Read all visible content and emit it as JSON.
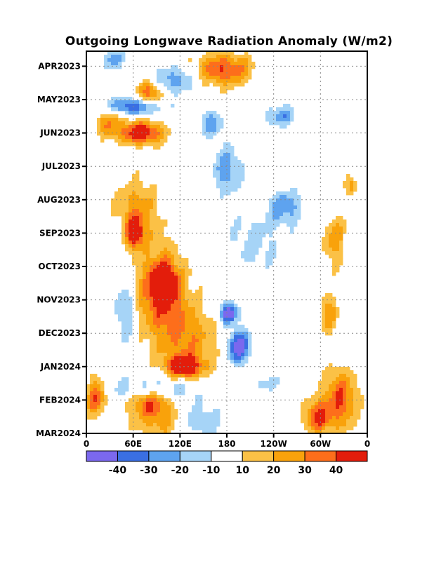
{
  "chart_data": {
    "type": "heatmap",
    "title": "Outgoing Longwave Radiation Anomaly (W/m2)",
    "xlabel": "",
    "ylabel": "",
    "x_ticks": [
      "0",
      "60E",
      "120E",
      "180",
      "120W",
      "60W",
      "0"
    ],
    "x_values": [
      0,
      60,
      120,
      180,
      240,
      300,
      360
    ],
    "xlim": [
      0,
      360
    ],
    "y_ticks": [
      "APR2023",
      "MAY2023",
      "JUN2023",
      "JUL2023",
      "AUG2023",
      "SEP2023",
      "OCT2023",
      "NOV2023",
      "DEC2023",
      "JAN2024",
      "FEB2024",
      "MAR2024"
    ],
    "y_values": [
      0,
      1,
      2,
      3,
      4,
      5,
      6,
      7,
      8,
      9,
      10,
      11
    ],
    "ylim": [
      -0.45,
      11
    ],
    "grid": true,
    "colorbar": {
      "labels": [
        "-40",
        "-30",
        "-20",
        "-10",
        "10",
        "20",
        "30",
        "40"
      ],
      "levels": [
        -40,
        -30,
        -20,
        -10,
        10,
        20,
        30,
        40
      ],
      "colors": [
        "#7b68ee",
        "#3a6fe3",
        "#5ea3ef",
        "#a6d4f7",
        "#ffffff",
        "#fbc146",
        "#f9a20b",
        "#fd6e1b",
        "#e31d0b"
      ]
    },
    "anomaly_regions": [
      {
        "lon": 35,
        "t": -0.2,
        "rx": 14,
        "rt": 0.3,
        "value": -20
      },
      {
        "lon": 80,
        "t": 0.8,
        "rx": 16,
        "rt": 0.35,
        "value": 30
      },
      {
        "lon": 175,
        "t": 0.1,
        "rx": 38,
        "rt": 0.5,
        "value": 30
      },
      {
        "lon": 115,
        "t": 0.4,
        "rx": 30,
        "rt": 0.4,
        "value": -20
      },
      {
        "lon": 60,
        "t": 1.2,
        "rx": 35,
        "rt": 0.25,
        "value": -30
      },
      {
        "lon": 70,
        "t": 2.0,
        "rx": 28,
        "rt": 0.35,
        "value": 40
      },
      {
        "lon": 28,
        "t": 1.7,
        "rx": 18,
        "rt": 0.4,
        "value": 20
      },
      {
        "lon": 250,
        "t": 1.5,
        "rx": 22,
        "rt": 0.3,
        "value": -20
      },
      {
        "lon": 160,
        "t": 1.7,
        "rx": 14,
        "rt": 0.4,
        "value": -20
      },
      {
        "lon": 180,
        "t": 3.1,
        "rx": 18,
        "rt": 0.7,
        "value": -20
      },
      {
        "lon": 255,
        "t": 4.2,
        "rx": 22,
        "rt": 0.5,
        "value": -20
      },
      {
        "lon": 65,
        "t": 4.3,
        "rx": 28,
        "rt": 0.9,
        "value": 20
      },
      {
        "lon": 62,
        "t": 5.0,
        "rx": 10,
        "rt": 0.4,
        "value": 40
      },
      {
        "lon": 318,
        "t": 5.2,
        "rx": 14,
        "rt": 0.8,
        "value": 20
      },
      {
        "lon": 95,
        "t": 6.7,
        "rx": 32,
        "rt": 1.3,
        "value": 30
      },
      {
        "lon": 100,
        "t": 6.5,
        "rx": 14,
        "rt": 0.5,
        "value": 40
      },
      {
        "lon": 130,
        "t": 8.3,
        "rx": 40,
        "rt": 1.2,
        "value": 20
      },
      {
        "lon": 125,
        "t": 9.0,
        "rx": 20,
        "rt": 0.3,
        "value": 40
      },
      {
        "lon": 50,
        "t": 7.3,
        "rx": 12,
        "rt": 0.9,
        "value": -20
      },
      {
        "lon": 182,
        "t": 7.4,
        "rx": 12,
        "rt": 0.3,
        "value": -40
      },
      {
        "lon": 195,
        "t": 8.4,
        "rx": 14,
        "rt": 0.5,
        "value": -40
      },
      {
        "lon": 215,
        "t": 5.3,
        "rx": 40,
        "rt": 1.0,
        "value": -10
      },
      {
        "lon": 310,
        "t": 7.4,
        "rx": 12,
        "rt": 0.6,
        "value": 20
      },
      {
        "lon": 325,
        "t": 10.0,
        "rx": 22,
        "rt": 0.9,
        "value": 30
      },
      {
        "lon": 12,
        "t": 9.9,
        "rx": 14,
        "rt": 0.6,
        "value": 30
      },
      {
        "lon": 80,
        "t": 10.0,
        "rx": 26,
        "rt": 0.4,
        "value": 30
      },
      {
        "lon": 90,
        "t": 9.7,
        "rx": 60,
        "rt": 0.4,
        "value": -20
      },
      {
        "lon": 140,
        "t": 10.6,
        "rx": 32,
        "rt": 0.5,
        "value": -20
      },
      {
        "lon": 100,
        "t": 10.6,
        "rx": 40,
        "rt": 0.6,
        "value": 20
      },
      {
        "lon": 295,
        "t": 10.5,
        "rx": 16,
        "rt": 0.5,
        "value": 30
      },
      {
        "lon": 230,
        "t": 9.5,
        "rx": 20,
        "rt": 0.3,
        "value": -10
      },
      {
        "lon": 340,
        "t": 3.6,
        "rx": 8,
        "rt": 0.3,
        "value": 20
      }
    ]
  }
}
